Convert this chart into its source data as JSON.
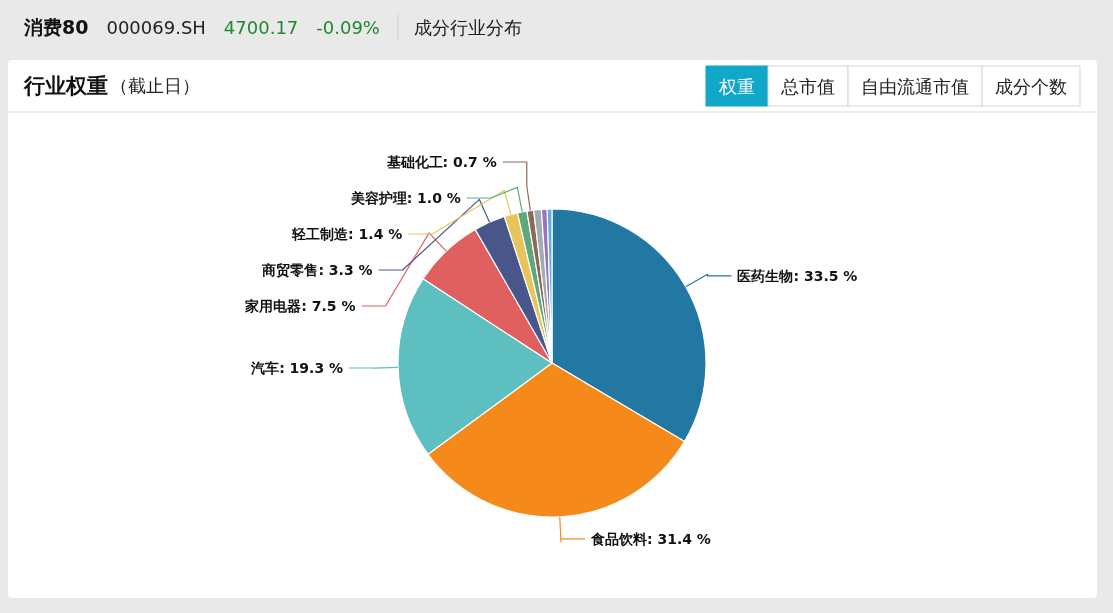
{
  "chart_data": {
    "type": "pie",
    "title": "行业权重",
    "subtitle": "（截止日）",
    "annotations": [
      "消费80",
      "000069.SH",
      "4700.17",
      "-0.09%",
      "成分行业分布",
      "权重",
      "总市值",
      "自由流通市值",
      "成分个数"
    ],
    "categories": [
      "医药生物",
      "食品饮料",
      "汽车",
      "家用电器",
      "商贸零售",
      "轻工制造",
      "美容护理",
      "基础化工",
      null,
      null,
      null
    ],
    "values": [
      33.5,
      31.4,
      19.3,
      7.5,
      3.3,
      1.4,
      1.0,
      0.7,
      0.8,
      0.6,
      0.5
    ],
    "colors": [
      "#2278a2",
      "#f5891a",
      "#5ebfc0",
      "#e05f5f",
      "#49568a",
      "#e8c55a",
      "#5ea97b",
      "#8b6a55",
      "#a2aab3",
      "#9a72b8",
      "#5aaee0"
    ],
    "value_labels": [
      ": 33.5 %",
      ": 31.4 %",
      ": 19.3 %",
      ": 7.5 %",
      ": 3.3 %",
      ": 1.4 %",
      ": 1.0 %",
      ": 0.7 %",
      null,
      null,
      null
    ]
  }
}
